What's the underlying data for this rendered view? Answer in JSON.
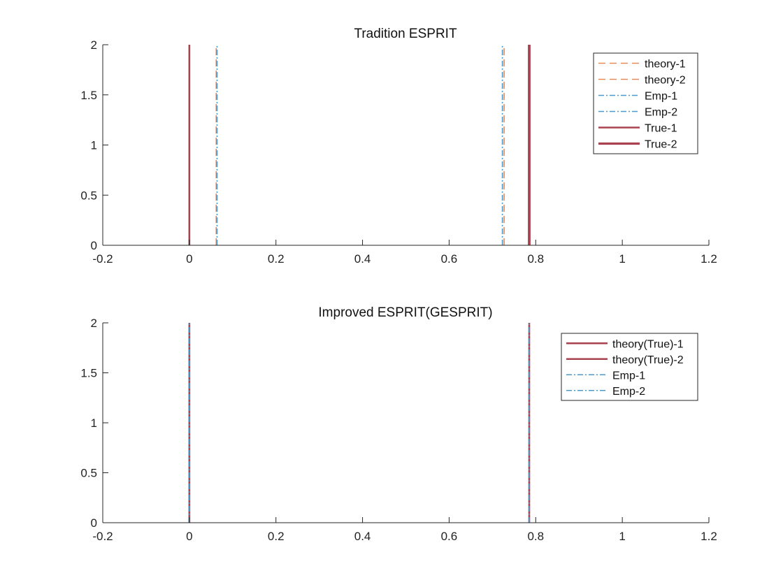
{
  "colors": {
    "theory": "#e8895a",
    "emp": "#4a9acb",
    "true": "#a8424f",
    "axis": "#262626"
  },
  "chart_data": [
    {
      "type": "line",
      "title": "Tradition ESPRIT",
      "xlabel": "",
      "ylabel": "",
      "xlim": [
        -0.2,
        1.2
      ],
      "ylim": [
        0,
        2
      ],
      "xticks": [
        "-0.2",
        "0",
        "0.2",
        "0.4",
        "0.6",
        "0.8",
        "1",
        "1.2"
      ],
      "yticks": [
        "0",
        "0.5",
        "1",
        "1.5",
        "2"
      ],
      "grid": false,
      "legend_position": "top-right",
      "series": [
        {
          "name": "theory-1",
          "x": 0.062,
          "y": [
            0,
            2
          ],
          "color": "#e8895a",
          "style": "dashed",
          "width": 1.6
        },
        {
          "name": "theory-2",
          "x": 0.727,
          "y": [
            0,
            2
          ],
          "color": "#e8895a",
          "style": "dashed",
          "width": 1.6
        },
        {
          "name": "Emp-1",
          "x": 0.064,
          "y": [
            0,
            2
          ],
          "color": "#4a9acb",
          "style": "dashdot",
          "width": 1.6
        },
        {
          "name": "Emp-2",
          "x": 0.723,
          "y": [
            0,
            2
          ],
          "color": "#4a9acb",
          "style": "dashdot",
          "width": 1.6
        },
        {
          "name": "True-1",
          "x": 0.0,
          "y": [
            0,
            2
          ],
          "color": "#a8424f",
          "style": "solid",
          "width": 2.6
        },
        {
          "name": "True-2",
          "x": 0.785,
          "y": [
            0,
            2
          ],
          "color": "#a8424f",
          "style": "solid",
          "width": 3.8
        }
      ]
    },
    {
      "type": "line",
      "title": "Improved ESPRIT(GESPRIT)",
      "xlabel": "",
      "ylabel": "",
      "xlim": [
        -0.2,
        1.2
      ],
      "ylim": [
        0,
        2
      ],
      "xticks": [
        "-0.2",
        "0",
        "0.2",
        "0.4",
        "0.6",
        "0.8",
        "1",
        "1.2"
      ],
      "yticks": [
        "0",
        "0.5",
        "1",
        "1.5",
        "2"
      ],
      "grid": false,
      "legend_position": "top-right",
      "series": [
        {
          "name": "theory(True)-1",
          "x": 0.0,
          "y": [
            0,
            2
          ],
          "color": "#a8424f",
          "style": "solid",
          "width": 2.6
        },
        {
          "name": "theory(True)-2",
          "x": 0.785,
          "y": [
            0,
            2
          ],
          "color": "#a8424f",
          "style": "solid",
          "width": 2.6
        },
        {
          "name": "Emp-1",
          "x": 0.0,
          "y": [
            0,
            2
          ],
          "color": "#4a9acb",
          "style": "dashdot",
          "width": 1.6
        },
        {
          "name": "Emp-2",
          "x": 0.785,
          "y": [
            0,
            2
          ],
          "color": "#4a9acb",
          "style": "dashdot",
          "width": 1.6
        }
      ]
    }
  ]
}
